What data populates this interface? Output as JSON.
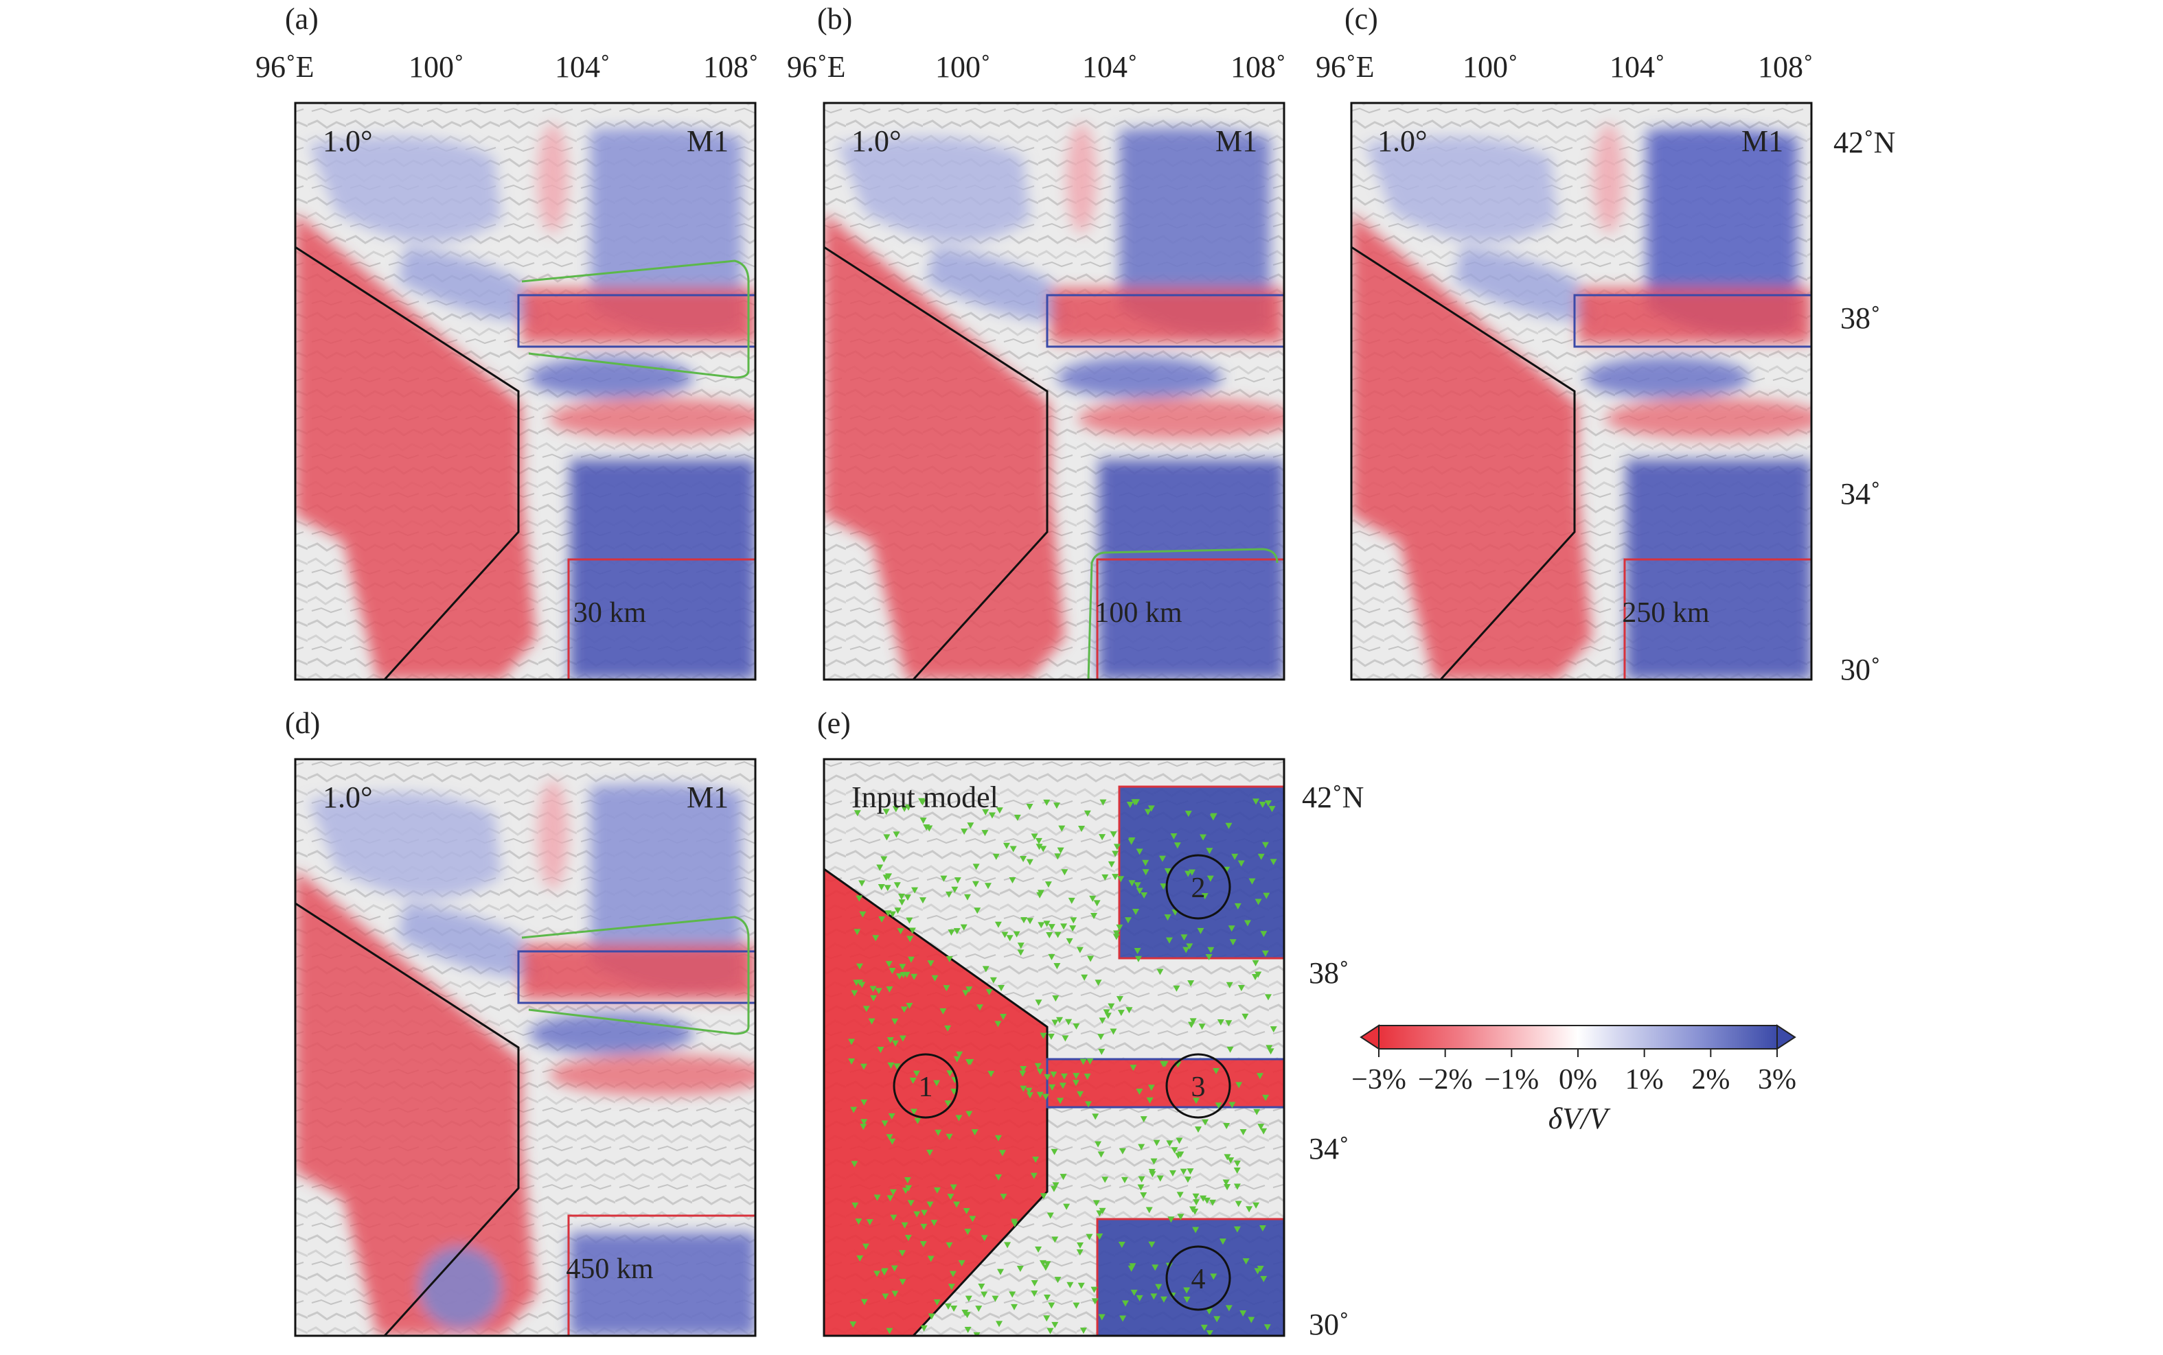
{
  "axes": {
    "lon_ticks": [
      "96˚E",
      "100˚",
      "104˚",
      "108˚"
    ],
    "lat_ticks": [
      "42˚N",
      "38˚",
      "34˚",
      "30˚"
    ]
  },
  "panels": [
    {
      "letter": "(a)",
      "smoothing": "1.0°",
      "model": "M1",
      "depth": "30 km"
    },
    {
      "letter": "(b)",
      "smoothing": "1.0°",
      "model": "M1",
      "depth": "100 km"
    },
    {
      "letter": "(c)",
      "smoothing": "1.0°",
      "model": "M1",
      "depth": "250 km"
    },
    {
      "letter": "(d)",
      "smoothing": "1.0°",
      "model": "M1",
      "depth": "450 km"
    }
  ],
  "input_panel": {
    "letter": "(e)",
    "title": "Input model",
    "anomaly_labels": [
      "1",
      "2",
      "3",
      "4"
    ]
  },
  "colorbar": {
    "ticks": [
      "−3%",
      "−2%",
      "−1%",
      "0%",
      "1%",
      "2%",
      "3%"
    ],
    "label": "δV/V",
    "range": [
      -3,
      3
    ],
    "low_color": "#e8323c",
    "high_color": "#3b4aa8"
  },
  "colors": {
    "slow": "#e8323c",
    "fast": "#3b4aa8",
    "region_outline": "#111111",
    "block_outline": "#d8323c",
    "strip_outline": "#3b4aa8",
    "low_velocity_contour": "#5cb84a",
    "station": "#5cc43a"
  }
}
